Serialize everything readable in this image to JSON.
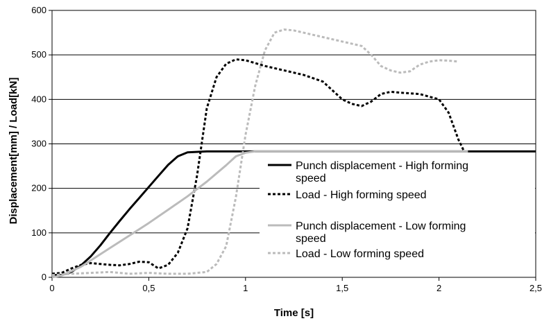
{
  "chart_data": {
    "type": "line",
    "xlabel": "Time [s]",
    "ylabel": "Displacement[mm] / Load[kN]",
    "xlim": [
      0,
      2.5
    ],
    "ylim": [
      0,
      600
    ],
    "x_ticks": [
      0,
      0.5,
      1,
      1.5,
      2,
      2.5
    ],
    "x_tick_labels": [
      "0",
      "0,5",
      "1",
      "1,5",
      "2",
      "2,5"
    ],
    "y_ticks": [
      0,
      100,
      200,
      300,
      400,
      500,
      600
    ],
    "y_tick_labels": [
      "0",
      "100",
      "200",
      "300",
      "400",
      "500",
      "600"
    ],
    "grid": "horizontal",
    "legend_position": "center-right",
    "series": [
      {
        "name": "Punch displacement - High forming speed",
        "color": "#000000",
        "dash": "solid",
        "points": [
          [
            0,
            5
          ],
          [
            0.05,
            5
          ],
          [
            0.1,
            12
          ],
          [
            0.15,
            27
          ],
          [
            0.2,
            47
          ],
          [
            0.25,
            72
          ],
          [
            0.3,
            100
          ],
          [
            0.35,
            127
          ],
          [
            0.4,
            153
          ],
          [
            0.45,
            178
          ],
          [
            0.5,
            203
          ],
          [
            0.55,
            228
          ],
          [
            0.6,
            253
          ],
          [
            0.65,
            272
          ],
          [
            0.7,
            281
          ],
          [
            0.8,
            283
          ],
          [
            1.0,
            283
          ],
          [
            1.5,
            283
          ],
          [
            2.0,
            283
          ],
          [
            2.5,
            283
          ]
        ]
      },
      {
        "name": "Load - High forming speed",
        "color": "#000000",
        "dash": "dashed",
        "points": [
          [
            0,
            8
          ],
          [
            0.05,
            10
          ],
          [
            0.1,
            20
          ],
          [
            0.15,
            28
          ],
          [
            0.2,
            32
          ],
          [
            0.25,
            30
          ],
          [
            0.3,
            28
          ],
          [
            0.35,
            27
          ],
          [
            0.4,
            30
          ],
          [
            0.45,
            35
          ],
          [
            0.5,
            34
          ],
          [
            0.55,
            20
          ],
          [
            0.6,
            28
          ],
          [
            0.65,
            55
          ],
          [
            0.7,
            110
          ],
          [
            0.75,
            230
          ],
          [
            0.8,
            380
          ],
          [
            0.85,
            450
          ],
          [
            0.9,
            480
          ],
          [
            0.95,
            490
          ],
          [
            1.0,
            488
          ],
          [
            1.1,
            475
          ],
          [
            1.2,
            465
          ],
          [
            1.3,
            455
          ],
          [
            1.4,
            440
          ],
          [
            1.5,
            400
          ],
          [
            1.55,
            390
          ],
          [
            1.6,
            385
          ],
          [
            1.65,
            395
          ],
          [
            1.7,
            412
          ],
          [
            1.75,
            417
          ],
          [
            1.8,
            415
          ],
          [
            1.9,
            412
          ],
          [
            2.0,
            400
          ],
          [
            2.05,
            370
          ],
          [
            2.1,
            310
          ],
          [
            2.13,
            283
          ]
        ]
      },
      {
        "name": "Punch displacement - Low forming speed",
        "color": "#bbbbbb",
        "dash": "solid",
        "points": [
          [
            0,
            0
          ],
          [
            0.05,
            4
          ],
          [
            0.1,
            14
          ],
          [
            0.15,
            24
          ],
          [
            0.2,
            38
          ],
          [
            0.3,
            66
          ],
          [
            0.4,
            94
          ],
          [
            0.5,
            122
          ],
          [
            0.6,
            152
          ],
          [
            0.7,
            182
          ],
          [
            0.8,
            215
          ],
          [
            0.9,
            252
          ],
          [
            0.95,
            272
          ],
          [
            1.0,
            280
          ],
          [
            1.05,
            283
          ],
          [
            1.2,
            283
          ],
          [
            1.5,
            283
          ],
          [
            2.0,
            283
          ],
          [
            2.15,
            283
          ]
        ]
      },
      {
        "name": "Load - Low forming speed",
        "color": "#bbbbbb",
        "dash": "dashed",
        "points": [
          [
            0,
            5
          ],
          [
            0.1,
            8
          ],
          [
            0.2,
            10
          ],
          [
            0.3,
            12
          ],
          [
            0.4,
            8
          ],
          [
            0.5,
            10
          ],
          [
            0.6,
            8
          ],
          [
            0.7,
            8
          ],
          [
            0.8,
            12
          ],
          [
            0.85,
            30
          ],
          [
            0.9,
            70
          ],
          [
            0.95,
            180
          ],
          [
            1.0,
            320
          ],
          [
            1.05,
            430
          ],
          [
            1.1,
            510
          ],
          [
            1.15,
            550
          ],
          [
            1.2,
            557
          ],
          [
            1.25,
            555
          ],
          [
            1.3,
            550
          ],
          [
            1.4,
            540
          ],
          [
            1.5,
            530
          ],
          [
            1.6,
            520
          ],
          [
            1.65,
            500
          ],
          [
            1.7,
            475
          ],
          [
            1.75,
            465
          ],
          [
            1.8,
            460
          ],
          [
            1.85,
            463
          ],
          [
            1.9,
            478
          ],
          [
            1.95,
            485
          ],
          [
            2.0,
            488
          ],
          [
            2.05,
            487
          ],
          [
            2.1,
            485
          ]
        ]
      }
    ],
    "legend": {
      "entries": [
        {
          "label_lines": [
            "Punch displacement - High forming",
            "speed"
          ],
          "series": 0
        },
        {
          "label_lines": [
            "Load - High forming speed"
          ],
          "series": 1
        },
        {
          "label_lines": [
            "Punch displacement - Low forming",
            "speed"
          ],
          "series": 2
        },
        {
          "label_lines": [
            "Load - Low forming speed"
          ],
          "series": 3
        }
      ]
    }
  }
}
